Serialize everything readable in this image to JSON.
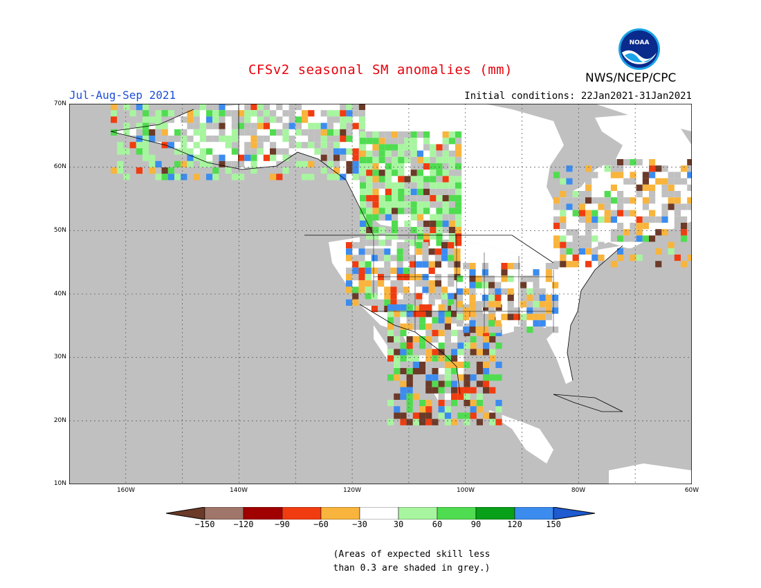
{
  "header": {
    "title": "CFSv2 seasonal SM anomalies (mm)",
    "season": "Jul-Aug-Sep 2021",
    "initial_conditions": "Initial conditions: 22Jan2021-31Jan2021",
    "agency": "NWS/NCEP/CPC",
    "logo_text": "NOAA"
  },
  "map": {
    "region": "North America",
    "projection": "lat-lon",
    "lat_range": [
      10,
      70
    ],
    "lon_range": [
      -170,
      -60
    ],
    "lat_labels": [
      "70N",
      "60N",
      "50N",
      "40N",
      "30N",
      "20N",
      "10N"
    ],
    "lon_labels": [
      "160W",
      "140W",
      "120W",
      "100W",
      "80W",
      "60W"
    ],
    "gridlines": true,
    "colors": {
      "low_skill_grey": "#c0c0c0",
      "ocean": "#c0c0c0",
      "neutral": "#ffffff",
      "land_outline": "#000000"
    }
  },
  "colorbar": {
    "ticks": [
      "−150",
      "−120",
      "−90",
      "−60",
      "−30",
      "30",
      "60",
      "90",
      "120",
      "150"
    ],
    "colors": [
      "#6b3a28",
      "#a0766a",
      "#a00000",
      "#f03c10",
      "#f8b43c",
      "#ffffff",
      "#a8f5a0",
      "#50dc50",
      "#08a018",
      "#3c8cf0",
      "#1e5ad0"
    ]
  },
  "note": {
    "line1": "(Areas of expected skill less",
    "line2": "than 0.3 are shaded in grey.)"
  }
}
